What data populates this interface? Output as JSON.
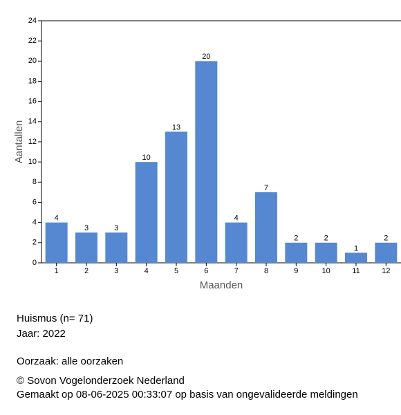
{
  "chart_data": {
    "type": "bar",
    "categories": [
      "1",
      "2",
      "3",
      "4",
      "5",
      "6",
      "7",
      "8",
      "9",
      "10",
      "11",
      "12"
    ],
    "values": [
      4,
      3,
      3,
      10,
      13,
      20,
      4,
      7,
      2,
      2,
      1,
      2
    ],
    "color": "#5588d0",
    "xlabel": "Maanden",
    "ylabel": "Aantallen",
    "ylim": [
      0,
      24
    ],
    "yticks": [
      0,
      2,
      4,
      6,
      8,
      10,
      12,
      14,
      16,
      18,
      20,
      22,
      24
    ]
  },
  "caption": {
    "species": "Huismus  (n= 71)",
    "year": "Jaar: 2022",
    "cause": "Oorzaak: alle oorzaken",
    "copyright": "© Sovon Vogelonderzoek Nederland",
    "generated": "Gemaakt op 08-06-2025 00:33:07 op basis van ongevalideerde meldingen"
  }
}
